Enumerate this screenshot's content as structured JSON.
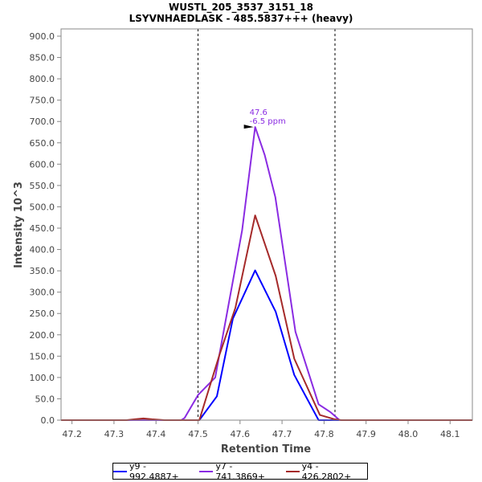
{
  "chart_data": {
    "type": "line",
    "title": "WUSTL_205_3537_3151_18",
    "subtitle": "LSYVNHAEDLASK - 485.5837+++ (heavy)",
    "xlabel": "Retention Time",
    "ylabel": "Intensity 10^3",
    "xlim": [
      47.174,
      48.153
    ],
    "ylim": [
      0,
      900
    ],
    "x_ticks": [
      "47.2",
      "47.3",
      "47.4",
      "47.5",
      "47.6",
      "47.7",
      "47.8",
      "47.9",
      "48.0",
      "48.1"
    ],
    "y_ticks": [
      "0.0",
      "50.0",
      "100.0",
      "150.0",
      "200.0",
      "250.0",
      "300.0",
      "350.0",
      "400.0",
      "450.0",
      "500.0",
      "550.0",
      "600.0",
      "650.0",
      "700.0",
      "750.0",
      "800.0",
      "850.0",
      "900.0"
    ],
    "grid": false,
    "boundaries": [
      47.5,
      47.826
    ],
    "annotation": {
      "x": 47.636,
      "y": 687,
      "line1": "47.6",
      "line2": "-6.5 ppm",
      "color": "#8a2be2"
    },
    "legend_position": "bottom",
    "series": [
      {
        "name": "y9 - 992.4887+",
        "color": "#0000ff",
        "x": [
          47.174,
          47.503,
          47.545,
          47.583,
          47.636,
          47.685,
          47.729,
          47.787,
          48.153
        ],
        "y": [
          0,
          0,
          56,
          238,
          351,
          254,
          106,
          0,
          0
        ]
      },
      {
        "name": "y7 - 741.3869+",
        "color": "#8a2be2",
        "x": [
          47.174,
          47.46,
          47.468,
          47.5,
          47.541,
          47.589,
          47.605,
          47.636,
          47.659,
          47.684,
          47.732,
          47.787,
          47.815,
          47.837,
          48.153
        ],
        "y": [
          0,
          0,
          5,
          59,
          100,
          358,
          445,
          687,
          621,
          523,
          207,
          37,
          19,
          0,
          0
        ]
      },
      {
        "name": "y4 - 426.2802+",
        "color": "#a52a2a",
        "x": [
          47.174,
          47.33,
          47.35,
          47.37,
          47.39,
          47.42,
          47.503,
          47.551,
          47.589,
          47.636,
          47.685,
          47.729,
          47.79,
          47.825,
          47.841,
          48.153
        ],
        "y": [
          0,
          0,
          2,
          4,
          2,
          0,
          0,
          153,
          263,
          480,
          338,
          144,
          12,
          2,
          0,
          0
        ]
      }
    ]
  }
}
